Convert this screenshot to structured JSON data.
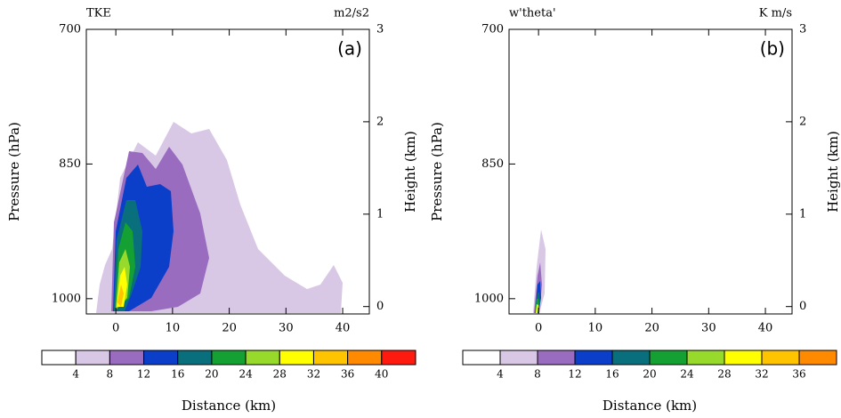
{
  "chart_data": [
    {
      "type": "contour",
      "title": "TKE",
      "unit_label": "m2/s2",
      "panel_label": "(a)",
      "xlabel": "Distance (km)",
      "ylabel": "Pressure (hPa)",
      "y2label": "Height (km)",
      "xlim": [
        -5.2,
        44.7
      ],
      "xticks": [
        0,
        10,
        20,
        30,
        40
      ],
      "ylim": [
        700,
        1017
      ],
      "yticks": [
        700,
        850,
        1000
      ],
      "y2lim": [
        -0.08,
        3
      ],
      "y2ticks": [
        0,
        1,
        2,
        3
      ],
      "levels": [
        4,
        8,
        12,
        16,
        20,
        24,
        28,
        32,
        36,
        40
      ],
      "colors": [
        "#ffffff",
        "#d8c8e6",
        "#9a6cc0",
        "#0b3fca",
        "#0a6f7c",
        "#14a033",
        "#98da2c",
        "#ffff00",
        "#ffc400",
        "#ff8a00",
        "#ff1a10"
      ]
    },
    {
      "type": "contour",
      "title": "w'theta'",
      "unit_label": "K m/s",
      "panel_label": "(b)",
      "xlabel": "Distance (km)",
      "ylabel": "Pressure (hPa)",
      "y2label": "Height (km)",
      "xlim": [
        -5.2,
        44.7
      ],
      "xticks": [
        0,
        10,
        20,
        30,
        40
      ],
      "ylim": [
        700,
        1017
      ],
      "yticks": [
        700,
        850,
        1000
      ],
      "y2lim": [
        -0.08,
        3
      ],
      "y2ticks": [
        0,
        1,
        2,
        3
      ],
      "levels": [
        4,
        8,
        12,
        16,
        20,
        24,
        28,
        32,
        36
      ],
      "colors": [
        "#ffffff",
        "#d8c8e6",
        "#9a6cc0",
        "#0b3fca",
        "#0a6f7c",
        "#14a033",
        "#98da2c",
        "#ffff00",
        "#ffc400",
        "#ff8a00"
      ]
    }
  ]
}
